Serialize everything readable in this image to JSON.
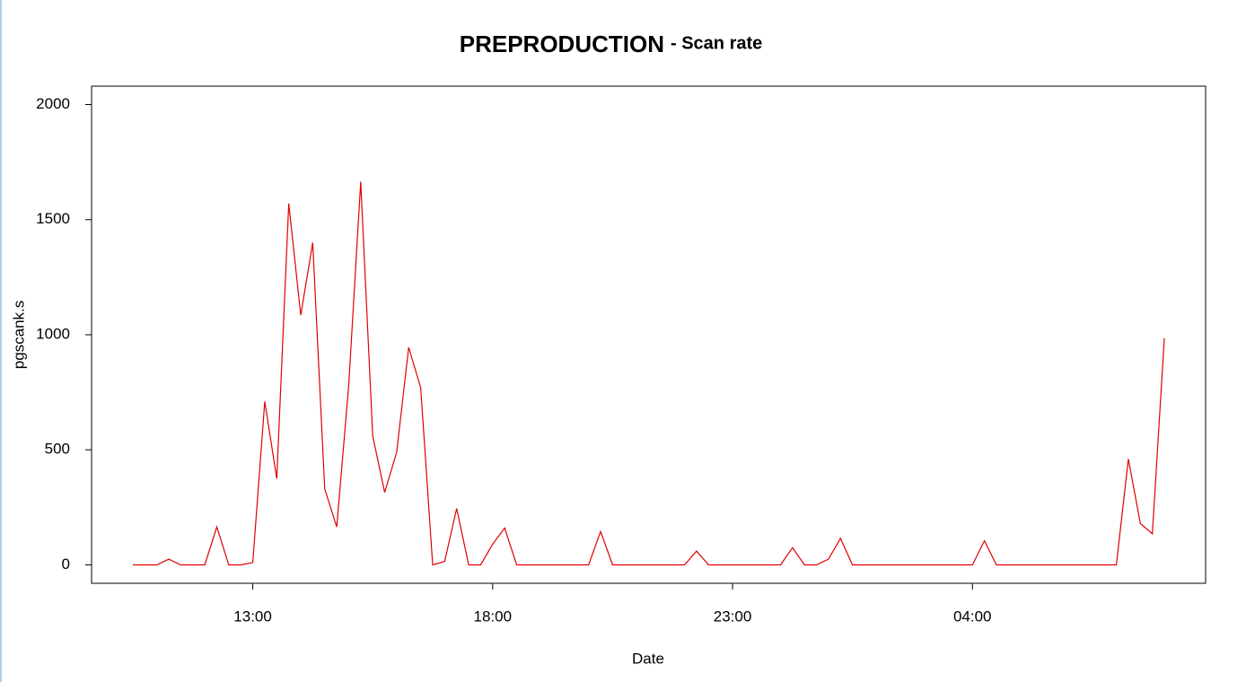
{
  "chart_data": {
    "type": "line",
    "title": "PREPRODUCTION",
    "subtitle": "- Scan rate",
    "x_label": "Date",
    "y_label": "pgscank.s",
    "categories": [
      "10:30",
      "10:45",
      "11:00",
      "11:15",
      "11:30",
      "11:45",
      "12:00",
      "12:15",
      "12:30",
      "12:45",
      "13:00",
      "13:15",
      "13:30",
      "13:45",
      "14:00",
      "14:15",
      "14:30",
      "14:45",
      "15:00",
      "15:15",
      "15:30",
      "15:45",
      "16:00",
      "16:15",
      "16:30",
      "16:45",
      "17:00",
      "17:15",
      "17:30",
      "17:45",
      "18:00",
      "18:15",
      "18:30",
      "18:45",
      "19:00",
      "19:15",
      "19:30",
      "19:45",
      "20:00",
      "20:15",
      "20:30",
      "20:45",
      "21:00",
      "21:15",
      "21:30",
      "21:45",
      "22:00",
      "22:15",
      "22:30",
      "22:45",
      "23:00",
      "23:15",
      "23:30",
      "23:45",
      "00:00",
      "00:15",
      "00:30",
      "00:45",
      "01:00",
      "01:15",
      "01:30",
      "01:45",
      "02:00",
      "02:15",
      "02:30",
      "02:45",
      "03:00",
      "03:15",
      "03:30",
      "03:45",
      "04:00",
      "04:15",
      "04:30",
      "04:45",
      "05:00",
      "05:15",
      "05:30",
      "05:45",
      "06:00",
      "06:15",
      "06:30",
      "06:45",
      "07:00",
      "07:15",
      "07:30",
      "07:45",
      "08:00"
    ],
    "series": [
      {
        "name": "pgscank.s",
        "color": "#e00000",
        "values": [
          0,
          0,
          0,
          25,
          0,
          0,
          0,
          165,
          0,
          0,
          10,
          710,
          375,
          1570,
          1085,
          1400,
          330,
          165,
          780,
          1665,
          560,
          315,
          490,
          945,
          770,
          0,
          15,
          245,
          0,
          0,
          90,
          160,
          0,
          0,
          0,
          0,
          0,
          0,
          0,
          145,
          0,
          0,
          0,
          0,
          0,
          0,
          0,
          60,
          0,
          0,
          0,
          0,
          0,
          0,
          0,
          75,
          0,
          0,
          25,
          115,
          0,
          0,
          0,
          0,
          0,
          0,
          0,
          0,
          0,
          0,
          0,
          105,
          0,
          0,
          0,
          0,
          0,
          0,
          0,
          0,
          0,
          0,
          0,
          460,
          180,
          135,
          985
        ]
      }
    ],
    "xlim": [
      -3.44,
      89.44
    ],
    "xticks": [
      {
        "value": 10,
        "label": "13:00"
      },
      {
        "value": 30,
        "label": "18:00"
      },
      {
        "value": 50,
        "label": "23:00"
      },
      {
        "value": 70,
        "label": "04:00"
      }
    ],
    "ylim": [
      -80,
      2080
    ],
    "yticks": [
      0,
      500,
      1000,
      1500,
      2000
    ],
    "grid": false
  }
}
